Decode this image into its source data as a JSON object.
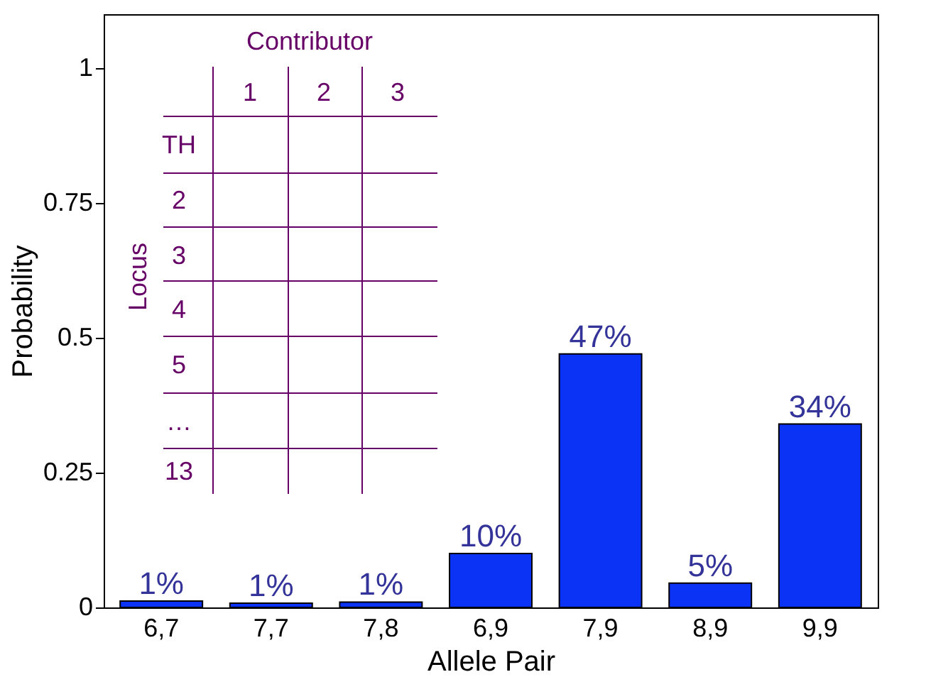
{
  "chart_data": {
    "type": "bar",
    "xlabel": "Allele Pair",
    "ylabel": "Probability",
    "categories": [
      "6,7",
      "7,7",
      "7,8",
      "6,9",
      "7,9",
      "8,9",
      "9,9"
    ],
    "values": [
      0.012,
      0.008,
      0.01,
      0.1,
      0.47,
      0.045,
      0.34
    ],
    "value_labels": [
      "1%",
      "1%",
      "1%",
      "10%",
      "47%",
      "5%",
      "34%"
    ],
    "color": "#0a33f5",
    "ylim": [
      0,
      1.1
    ],
    "yticks": [
      0,
      0.25,
      0.5,
      0.75,
      1
    ],
    "grid": false,
    "annotations": [
      "Contributor",
      "1",
      "2",
      "3",
      "TH",
      "2",
      "3",
      "4",
      "5",
      "…",
      "13",
      "Locus"
    ]
  }
}
